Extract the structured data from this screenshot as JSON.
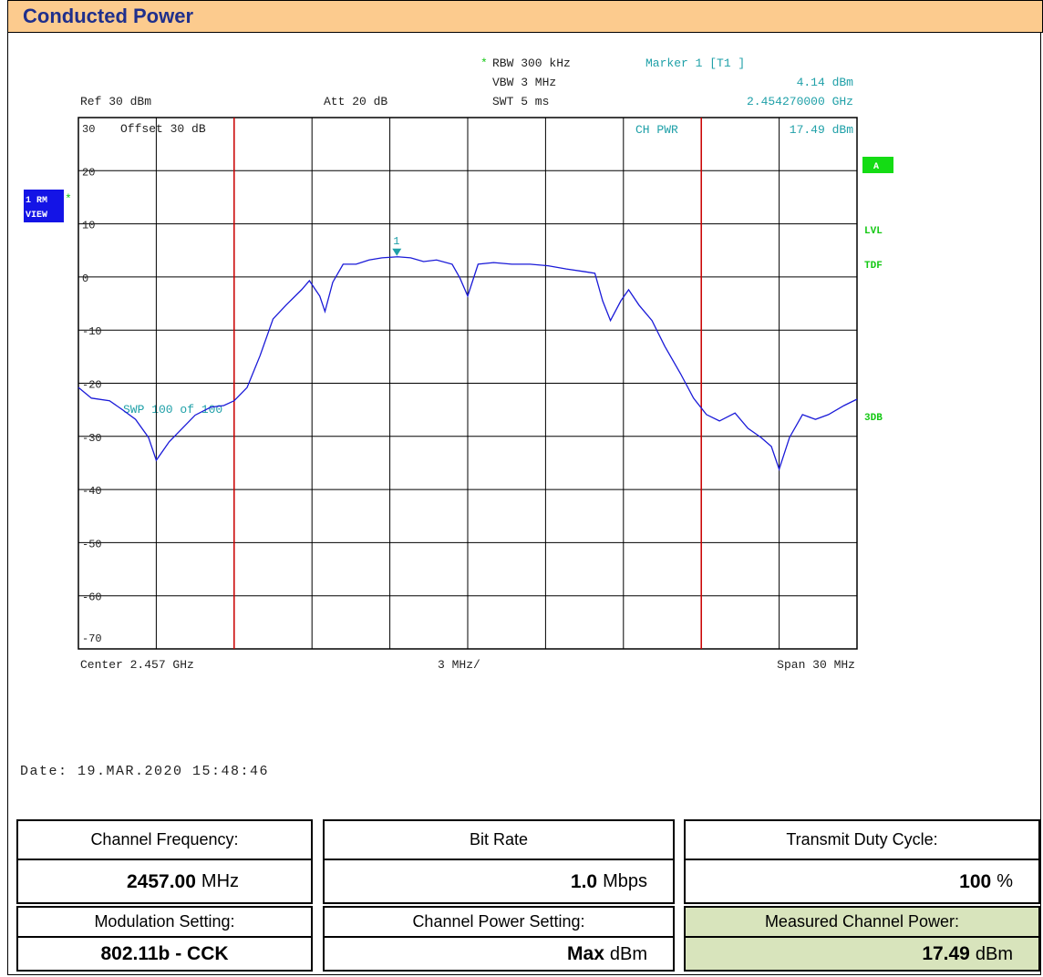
{
  "header": {
    "title": "Conducted Power"
  },
  "chart_data": {
    "type": "line",
    "settings": {
      "rbw_star": "*",
      "rbw": "RBW 300 kHz",
      "vbw": "VBW 3 MHz",
      "swt": "SWT 5 ms",
      "ref": "Ref 30 dBm",
      "att": "Att 20 dB",
      "offset": "Offset 30 dB",
      "sweep": "SWP 100 of 100",
      "trace_mode": [
        "1 RM",
        "VIEW"
      ],
      "trace_star": "*",
      "side_labels": [
        "A",
        "LVL",
        "TDF",
        "3DB"
      ]
    },
    "marker": {
      "title": "Marker 1 [T1 ]",
      "name": "1",
      "x": 2.45427,
      "y": 4.14,
      "y_label": "4.14 dBm",
      "x_label": "2.454270000 GHz",
      "color": "#1fa0a8"
    },
    "ch_power": {
      "label": "CH PWR",
      "value_label": "17.49 dBm"
    },
    "x_axis": {
      "center": "Center 2.457 GHz",
      "per_div": "3 MHz/",
      "span": "Span 30 MHz"
    },
    "xlim": [
      2.442,
      2.472
    ],
    "xticks": [
      2.442,
      2.445,
      2.448,
      2.451,
      2.454,
      2.457,
      2.46,
      2.463,
      2.466,
      2.469,
      2.472
    ],
    "ylim": [
      -70,
      30
    ],
    "yticks": [
      -70,
      -60,
      -50,
      -40,
      -30,
      -20,
      -10,
      0,
      10,
      20,
      30
    ],
    "grid": true,
    "channel_limits": [
      2.448,
      2.466
    ],
    "limit_color": "#cc0000",
    "series": [
      {
        "name": "1 RM",
        "color": "#1a1ad8",
        "x": [
          2.442,
          2.4425,
          2.4432,
          2.4437,
          2.4442,
          2.4447,
          2.445,
          2.4455,
          2.446,
          2.4465,
          2.4471,
          2.4476,
          2.448,
          2.4485,
          2.449,
          2.4495,
          2.45,
          2.4506,
          2.4509,
          2.4513,
          2.4515,
          2.4518,
          2.4522,
          2.4527,
          2.4532,
          2.4537,
          2.4543,
          2.4548,
          2.4553,
          2.4558,
          2.4564,
          2.4567,
          2.457,
          2.4574,
          2.458,
          2.4587,
          2.4594,
          2.4601,
          2.4608,
          2.4615,
          2.4619,
          2.4622,
          2.4625,
          2.4629,
          2.4632,
          2.4636,
          2.4641,
          2.4646,
          2.4652,
          2.4657,
          2.4662,
          2.4667,
          2.4673,
          2.4678,
          2.4683,
          2.4687,
          2.469,
          2.4694,
          2.4699,
          2.4704,
          2.4709,
          2.4715,
          2.472
        ],
        "values": [
          -20.8,
          -22.8,
          -23.3,
          -25,
          -26.8,
          -30.2,
          -34.5,
          -31,
          -28.5,
          -26,
          -24.5,
          -24.2,
          -23.3,
          -20.8,
          -14.8,
          -7.9,
          -5.3,
          -2.4,
          -0.7,
          -3.6,
          -6.5,
          -1,
          2.4,
          2.4,
          3.2,
          3.6,
          3.8,
          3.6,
          2.9,
          3.2,
          2.4,
          -0.2,
          -3.6,
          2.4,
          2.7,
          2.4,
          2.4,
          2.1,
          1.5,
          1,
          0.7,
          -4.5,
          -8.2,
          -4.5,
          -2.4,
          -5.3,
          -8.2,
          -13.1,
          -18.2,
          -22.8,
          -25.9,
          -27.1,
          -25.6,
          -28.5,
          -30.2,
          -31.9,
          -36.2,
          -30.2,
          -25.9,
          -26.8,
          -25.9,
          -24.2,
          -23
        ]
      }
    ]
  },
  "date": "Date: 19.MAR.2020  15:48:46",
  "table": {
    "rows": [
      [
        {
          "label": "Channel Frequency:",
          "value": "2457.00",
          "unit": "MHz"
        },
        {
          "label": "Bit Rate",
          "value": "1.0",
          "unit": "Mbps"
        },
        {
          "label": "Transmit Duty Cycle:",
          "value": "100",
          "unit": "%"
        }
      ],
      [
        {
          "label": "Modulation Setting:",
          "value": "802.11b - CCK"
        },
        {
          "label": "Channel Power Setting:",
          "value": "Max",
          "unit": "dBm"
        },
        {
          "label": "Measured Channel Power:",
          "value": "17.49",
          "unit": "dBm",
          "background": "#d8e4bc"
        }
      ]
    ]
  }
}
